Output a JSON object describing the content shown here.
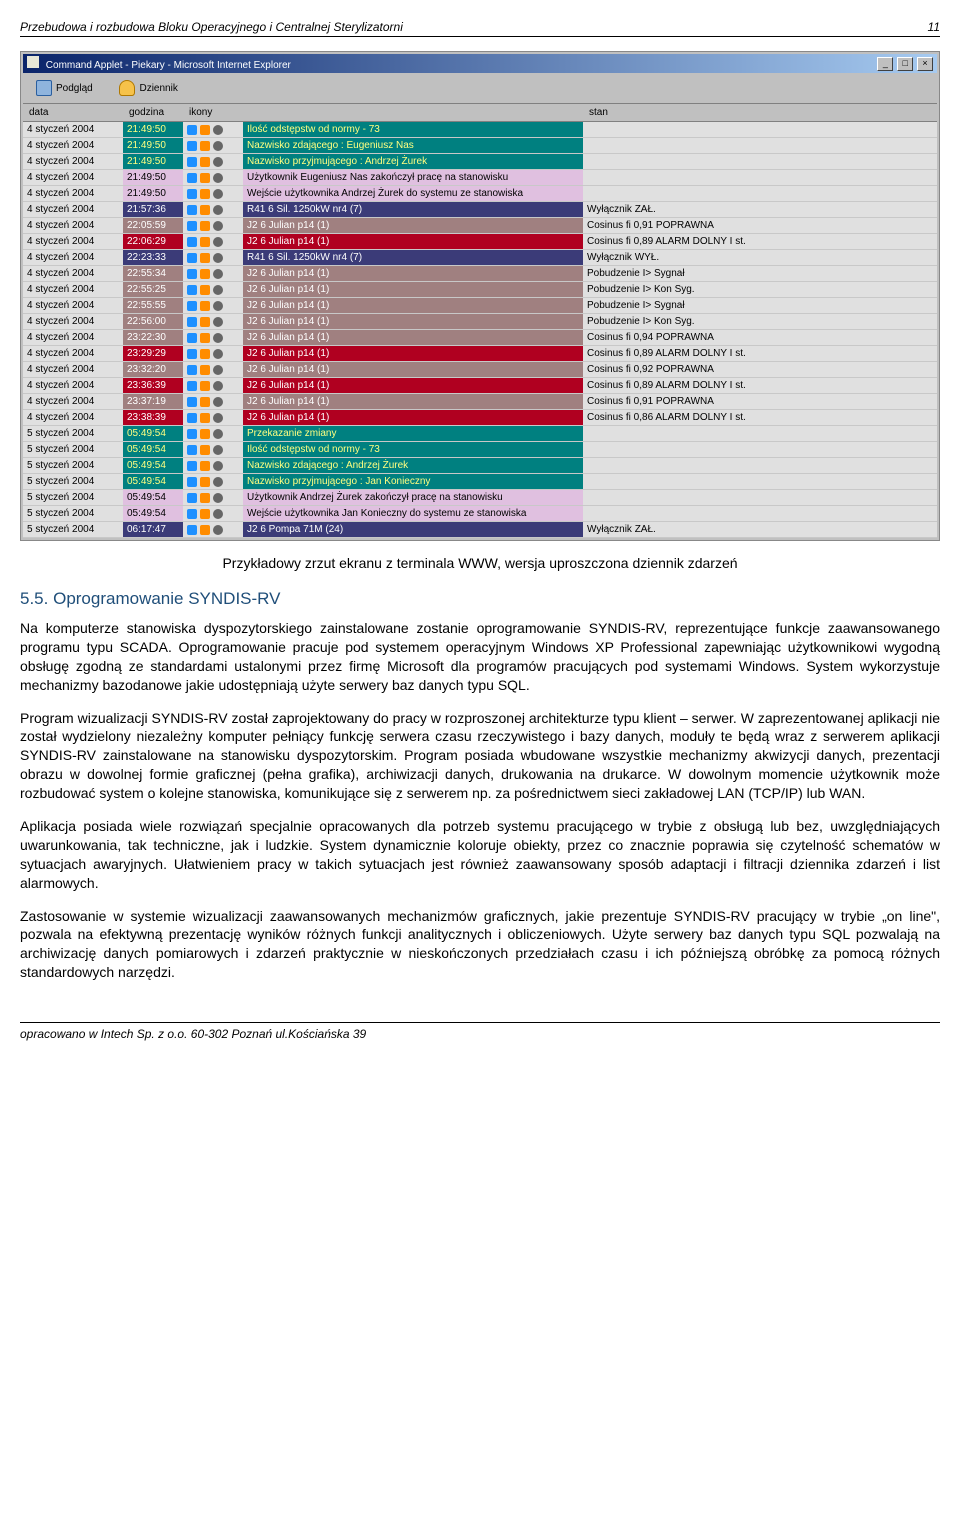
{
  "header": {
    "title": "Przebudowa i rozbudowa Bloku Operacyjnego i Centralnej Sterylizatorni",
    "pageNumber": "11"
  },
  "screenshot": {
    "windowTitle": "Command Applet - Piekary - Microsoft Internet Explorer",
    "toolbar": {
      "preview": "Podgląd",
      "journal": "Dziennik"
    },
    "columns": {
      "data": "data",
      "godzina": "godzina",
      "ikony": "ikony",
      "opis": " ",
      "stan": "stan"
    },
    "rows": [
      {
        "data": "4 styczeń 2004",
        "godz": "21:49:50",
        "bg": "#008080",
        "fg": "#ffff80",
        "desc": "Ilość odstępstw od normy - 73",
        "stan": ""
      },
      {
        "data": "4 styczeń 2004",
        "godz": "21:49:50",
        "bg": "#008080",
        "fg": "#ffff80",
        "desc": "Nazwisko zdającego : Eugeniusz Nas",
        "stan": ""
      },
      {
        "data": "4 styczeń 2004",
        "godz": "21:49:50",
        "bg": "#008080",
        "fg": "#ffff80",
        "desc": "Nazwisko przyjmującego : Andrzej Żurek",
        "stan": ""
      },
      {
        "data": "4 styczeń 2004",
        "godz": "21:49:50",
        "bg": "#e0c0e0",
        "fg": "#000",
        "desc": "Użytkownik Eugeniusz Nas zakończył pracę na stanowisku",
        "stan": ""
      },
      {
        "data": "4 styczeń 2004",
        "godz": "21:49:50",
        "bg": "#e0c0e0",
        "fg": "#000",
        "desc": "Wejście użytkownika Andrzej Żurek do systemu ze stanowiska",
        "stan": ""
      },
      {
        "data": "4 styczeń 2004",
        "godz": "21:57:36",
        "bg": "#3b3b78",
        "fg": "#fff",
        "desc": "R41 6 Sil. 1250kW nr4 (7)",
        "stan": "Wyłącznik ZAŁ."
      },
      {
        "data": "4 styczeń 2004",
        "godz": "22:05:59",
        "bg": "#a08080",
        "fg": "#ffffff",
        "desc": "J2 6 Julian p14 (1)",
        "stan": "Cosinus fi 0,91 POPRAWNA"
      },
      {
        "data": "4 styczeń 2004",
        "godz": "22:06:29",
        "bg": "#b00020",
        "fg": "#fff",
        "desc": "J2 6 Julian p14 (1)",
        "stan": "Cosinus fi 0,89 ALARM DOLNY I st."
      },
      {
        "data": "4 styczeń 2004",
        "godz": "22:23:33",
        "bg": "#3b3b78",
        "fg": "#fff",
        "desc": "R41 6 Sil. 1250kW nr4 (7)",
        "stan": "Wyłącznik WYŁ."
      },
      {
        "data": "4 styczeń 2004",
        "godz": "22:55:34",
        "bg": "#a08080",
        "fg": "#fff",
        "desc": "J2 6 Julian p14 (1)",
        "stan": "Pobudzenie I> Sygnał"
      },
      {
        "data": "4 styczeń 2004",
        "godz": "22:55:25",
        "bg": "#a08080",
        "fg": "#fff",
        "desc": "J2 6 Julian p14 (1)",
        "stan": "Pobudzenie I> Kon Syg."
      },
      {
        "data": "4 styczeń 2004",
        "godz": "22:55:55",
        "bg": "#a08080",
        "fg": "#fff",
        "desc": "J2 6 Julian p14 (1)",
        "stan": "Pobudzenie I> Sygnał"
      },
      {
        "data": "4 styczeń 2004",
        "godz": "22:56:00",
        "bg": "#a08080",
        "fg": "#fff",
        "desc": "J2 6 Julian p14 (1)",
        "stan": "Pobudzenie I> Kon Syg."
      },
      {
        "data": "4 styczeń 2004",
        "godz": "23:22:30",
        "bg": "#a08080",
        "fg": "#fff",
        "desc": "J2 6 Julian p14 (1)",
        "stan": "Cosinus fi 0,94 POPRAWNA"
      },
      {
        "data": "4 styczeń 2004",
        "godz": "23:29:29",
        "bg": "#b00020",
        "fg": "#fff",
        "desc": "J2 6 Julian p14 (1)",
        "stan": "Cosinus fi 0,89 ALARM DOLNY I st."
      },
      {
        "data": "4 styczeń 2004",
        "godz": "23:32:20",
        "bg": "#a08080",
        "fg": "#fff",
        "desc": "J2 6 Julian p14 (1)",
        "stan": "Cosinus fi 0,92 POPRAWNA"
      },
      {
        "data": "4 styczeń 2004",
        "godz": "23:36:39",
        "bg": "#b00020",
        "fg": "#fff",
        "desc": "J2 6 Julian p14 (1)",
        "stan": "Cosinus fi 0,89 ALARM DOLNY I st."
      },
      {
        "data": "4 styczeń 2004",
        "godz": "23:37:19",
        "bg": "#a08080",
        "fg": "#fff",
        "desc": "J2 6 Julian p14 (1)",
        "stan": "Cosinus fi 0,91 POPRAWNA"
      },
      {
        "data": "4 styczeń 2004",
        "godz": "23:38:39",
        "bg": "#b00020",
        "fg": "#fff",
        "desc": "J2 6 Julian p14 (1)",
        "stan": "Cosinus fi 0,86 ALARM DOLNY I st."
      },
      {
        "data": "5 styczeń 2004",
        "godz": "05:49:54",
        "bg": "#008080",
        "fg": "#ffff80",
        "desc": "Przekazanie zmiany",
        "stan": ""
      },
      {
        "data": "5 styczeń 2004",
        "godz": "05:49:54",
        "bg": "#008080",
        "fg": "#ffff80",
        "desc": "Ilość odstępstw od normy - 73",
        "stan": ""
      },
      {
        "data": "5 styczeń 2004",
        "godz": "05:49:54",
        "bg": "#008080",
        "fg": "#ffff80",
        "desc": "Nazwisko zdającego : Andrzej Żurek",
        "stan": ""
      },
      {
        "data": "5 styczeń 2004",
        "godz": "05:49:54",
        "bg": "#008080",
        "fg": "#ffff80",
        "desc": "Nazwisko przyjmującego : Jan Konieczny",
        "stan": ""
      },
      {
        "data": "5 styczeń 2004",
        "godz": "05:49:54",
        "bg": "#e0c0e0",
        "fg": "#000",
        "desc": "Użytkownik Andrzej Żurek zakończył pracę na stanowisku",
        "stan": ""
      },
      {
        "data": "5 styczeń 2004",
        "godz": "05:49:54",
        "bg": "#e0c0e0",
        "fg": "#000",
        "desc": "Wejście użytkownika Jan Konieczny do systemu ze stanowiska",
        "stan": ""
      },
      {
        "data": "5 styczeń 2004",
        "godz": "06:17:47",
        "bg": "#3b3b78",
        "fg": "#fff",
        "desc": "J2 6 Pompa 71M (24)",
        "stan": "Wyłącznik ZAŁ."
      }
    ]
  },
  "caption": "Przykładowy zrzut ekranu z terminala WWW, wersja uproszczona dziennik zdarzeń",
  "section": {
    "number": "5.5.",
    "title": "Oprogramowanie SYNDIS-RV"
  },
  "paragraphs": {
    "p1": "Na komputerze stanowiska dyspozytorskiego zainstalowane zostanie oprogramowanie SYNDIS-RV, reprezentujące funkcje zaawansowanego programu typu SCADA. Oprogramowanie pracuje pod systemem operacyjnym Windows XP Professional zapewniając użytkownikowi wygodną obsługę zgodną ze standardami ustalonymi przez firmę Microsoft dla programów pracujących pod systemami Windows. System wykorzystuje mechanizmy bazodanowe jakie udostępniają użyte serwery baz danych typu SQL.",
    "p2": "Program wizualizacji SYNDIS-RV został zaprojektowany do pracy w rozproszonej architekturze typu klient – serwer. W zaprezentowanej aplikacji nie został wydzielony niezależny komputer pełniący funkcję serwera czasu rzeczywistego i bazy danych, moduły te będą wraz z serwerem aplikacji SYNDIS-RV zainstalowane na stanowisku dyspozytorskim. Program posiada wbudowane wszystkie mechanizmy akwizycji danych, prezentacji obrazu w dowolnej formie graficznej (pełna grafika), archiwizacji danych, drukowania na drukarce. W dowolnym momencie użytkownik może rozbudować system o kolejne stanowiska, komunikujące się z serwerem np. za pośrednictwem sieci zakładowej LAN (TCP/IP) lub WAN.",
    "p3": "Aplikacja posiada wiele rozwiązań specjalnie opracowanych dla potrzeb systemu pracującego w trybie z obsługą lub bez, uwzględniających uwarunkowania, tak techniczne, jak i ludzkie. System dynamicznie koloruje obiekty, przez co znacznie poprawia się czytelność schematów w sytuacjach awaryjnych. Ułatwieniem pracy w takich sytuacjach jest również zaawansowany sposób adaptacji i filtracji dziennika zdarzeń i list alarmowych.",
    "p4": "Zastosowanie w systemie wizualizacji zaawansowanych mechanizmów graficznych, jakie prezentuje SYNDIS-RV pracujący w trybie „on line\", pozwala na efektywną prezentację wyników różnych funkcji analitycznych i obliczeniowych. Użyte serwery baz danych typu SQL pozwalają na archiwizację danych pomiarowych i zdarzeń praktycznie w nieskończonych przedziałach czasu i ich późniejszą obróbkę za pomocą różnych standardowych narzędzi."
  },
  "footer": "opracowano w Intech Sp. z o.o. 60-302 Poznań ul.Kościańska 39"
}
